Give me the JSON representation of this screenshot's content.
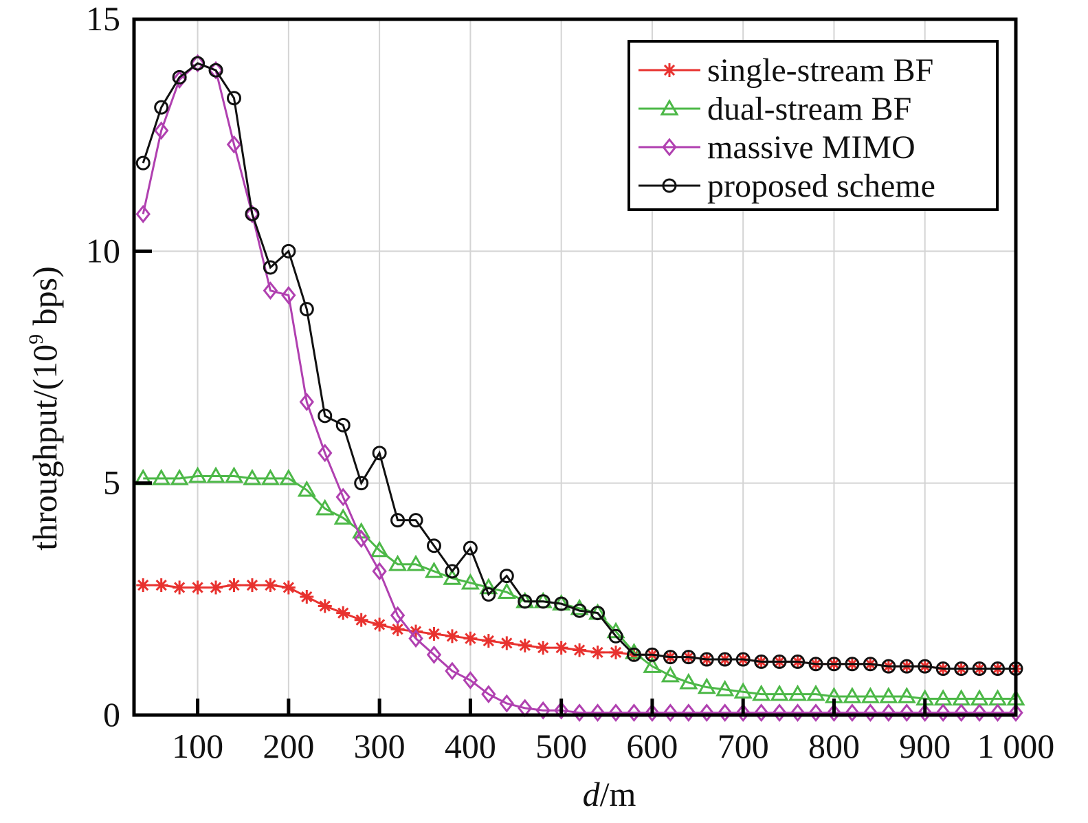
{
  "chart_data": {
    "type": "line",
    "xlabel_italic": "d",
    "xlabel_rest": "/m",
    "ylabel_main": "throughput/(10",
    "ylabel_sup": "9",
    "ylabel_tail": " bps)",
    "xlim": [
      30,
      1000
    ],
    "ylim": [
      0,
      15
    ],
    "xticks": [
      100,
      200,
      300,
      400,
      500,
      600,
      700,
      800,
      900,
      1000
    ],
    "xtick_labels": [
      "100",
      "200",
      "300",
      "400",
      "500",
      "600",
      "700",
      "800",
      "900",
      "1 000"
    ],
    "yticks": [
      0,
      5,
      10,
      15
    ],
    "ytick_labels": [
      "0",
      "5",
      "10",
      "15"
    ],
    "grid": true,
    "legend_position": "top-right",
    "x": [
      40,
      60,
      80,
      100,
      120,
      140,
      160,
      180,
      200,
      220,
      240,
      260,
      280,
      300,
      320,
      340,
      360,
      380,
      400,
      420,
      440,
      460,
      480,
      500,
      520,
      540,
      560,
      580,
      600,
      620,
      640,
      660,
      680,
      700,
      720,
      740,
      760,
      780,
      800,
      820,
      840,
      860,
      880,
      900,
      920,
      940,
      960,
      980,
      1000
    ],
    "series": [
      {
        "name": "single-stream BF",
        "color": "#e8322f",
        "marker": "star",
        "values": [
          2.8,
          2.8,
          2.75,
          2.75,
          2.75,
          2.8,
          2.8,
          2.8,
          2.75,
          2.55,
          2.35,
          2.2,
          2.05,
          1.95,
          1.85,
          1.8,
          1.75,
          1.7,
          1.65,
          1.6,
          1.55,
          1.5,
          1.45,
          1.45,
          1.4,
          1.35,
          1.35,
          1.3,
          1.3,
          1.25,
          1.25,
          1.2,
          1.2,
          1.2,
          1.15,
          1.15,
          1.15,
          1.1,
          1.1,
          1.1,
          1.1,
          1.05,
          1.05,
          1.05,
          1.0,
          1.0,
          1.0,
          1.0,
          1.0
        ]
      },
      {
        "name": "dual-stream BF",
        "color": "#4cb847",
        "marker": "triangle",
        "values": [
          5.1,
          5.1,
          5.1,
          5.15,
          5.15,
          5.15,
          5.1,
          5.1,
          5.1,
          4.85,
          4.45,
          4.25,
          3.95,
          3.55,
          3.25,
          3.25,
          3.1,
          2.95,
          2.85,
          2.75,
          2.65,
          2.45,
          2.45,
          2.4,
          2.3,
          2.2,
          1.8,
          1.35,
          1.05,
          0.85,
          0.7,
          0.6,
          0.55,
          0.5,
          0.45,
          0.45,
          0.45,
          0.45,
          0.4,
          0.4,
          0.4,
          0.4,
          0.4,
          0.35,
          0.35,
          0.35,
          0.35,
          0.35,
          0.35
        ]
      },
      {
        "name": "massive MIMO",
        "color": "#b040b0",
        "marker": "diamond",
        "values": [
          10.8,
          12.6,
          13.7,
          14.05,
          13.9,
          12.3,
          10.8,
          9.15,
          9.05,
          6.75,
          5.65,
          4.7,
          3.8,
          3.1,
          2.15,
          1.65,
          1.3,
          0.95,
          0.75,
          0.45,
          0.25,
          0.15,
          0.1,
          0.1,
          0.05,
          0.05,
          0.05,
          0.05,
          0.05,
          0.05,
          0.05,
          0.05,
          0.05,
          0.05,
          0.05,
          0.05,
          0.05,
          0.05,
          0.05,
          0.05,
          0.05,
          0.05,
          0.05,
          0.05,
          0.05,
          0.05,
          0.05,
          0.05,
          0.05
        ]
      },
      {
        "name": "proposed scheme",
        "color": "#111111",
        "marker": "circle",
        "values": [
          11.9,
          13.1,
          13.75,
          14.05,
          13.9,
          13.3,
          10.8,
          9.65,
          10.0,
          8.75,
          6.45,
          6.25,
          5.0,
          5.65,
          4.2,
          4.2,
          3.65,
          3.1,
          3.6,
          2.6,
          3.0,
          2.45,
          2.45,
          2.4,
          2.25,
          2.2,
          1.7,
          1.3,
          1.3,
          1.25,
          1.25,
          1.2,
          1.2,
          1.2,
          1.15,
          1.15,
          1.15,
          1.1,
          1.1,
          1.1,
          1.1,
          1.05,
          1.05,
          1.05,
          1.0,
          1.0,
          1.0,
          1.0,
          1.0
        ]
      }
    ]
  }
}
